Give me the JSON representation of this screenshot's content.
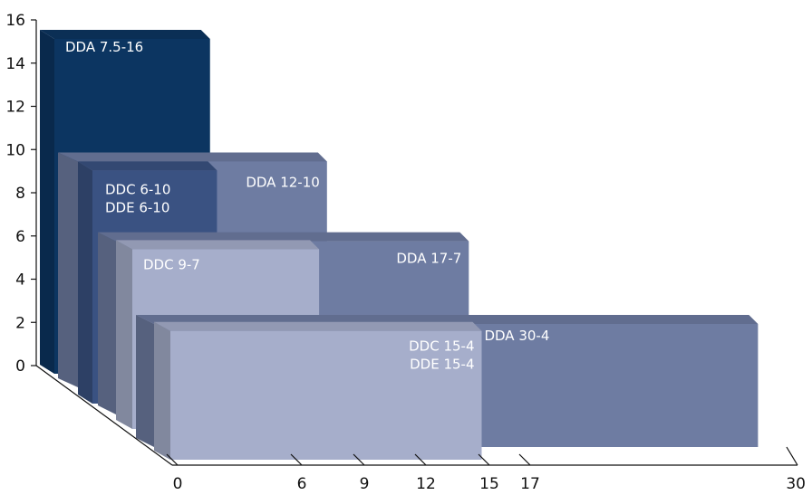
{
  "chart_data": {
    "type": "bar",
    "title": "",
    "xlabel": "",
    "ylabel": "",
    "y_ticks": [
      0,
      2,
      4,
      6,
      8,
      10,
      12,
      14,
      16
    ],
    "x_ticks": [
      0,
      6,
      9,
      12,
      15,
      17,
      30
    ],
    "ylim": [
      0,
      16
    ],
    "xlim": [
      0,
      30
    ],
    "grid": false,
    "bars": [
      {
        "label_lines": [
          "DDA 7.5-16"
        ],
        "x_value": 7.5,
        "y_value": 16,
        "color": "#0c3561"
      },
      {
        "label_lines": [
          "DDA 12-10"
        ],
        "x_value": 12,
        "y_value": 10,
        "color": "#6e7ca2"
      },
      {
        "label_lines": [
          "DDC 6-10",
          "DDE 6-10"
        ],
        "x_value": 6,
        "y_value": 10,
        "color": "#3a5282"
      },
      {
        "label_lines": [
          "DDA 17-7"
        ],
        "x_value": 17,
        "y_value": 7,
        "color": "#6e7ca2"
      },
      {
        "label_lines": [
          "DDC 9-7"
        ],
        "x_value": 9,
        "y_value": 7,
        "color": "#a6aecb"
      },
      {
        "label_lines": [
          "DDA 30-4"
        ],
        "x_value": 30,
        "y_value": 4,
        "color": "#6e7ca2"
      },
      {
        "label_lines": [
          "DDC 15-4",
          "DDE 15-4"
        ],
        "x_value": 15,
        "y_value": 4,
        "color": "#a6aecb"
      }
    ]
  }
}
